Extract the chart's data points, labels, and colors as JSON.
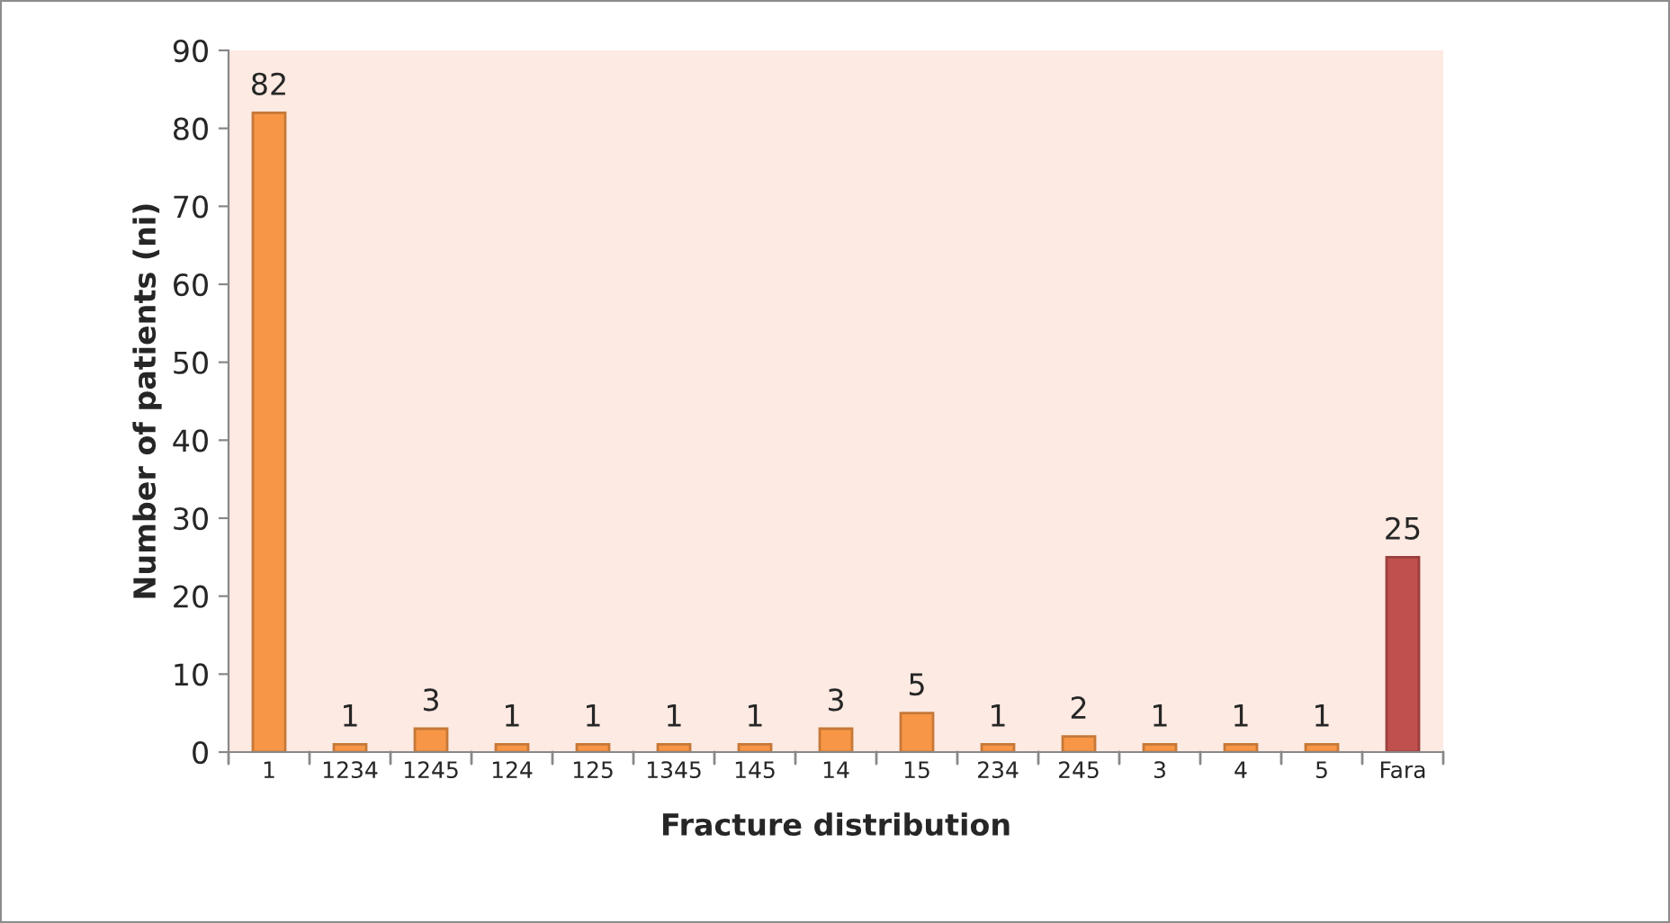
{
  "chart_data": {
    "type": "bar",
    "xlabel": "Fracture distribution",
    "ylabel": "Number of patients (ni)",
    "categories": [
      "1",
      "1234",
      "1245",
      "124",
      "125",
      "1345",
      "145",
      "14",
      "15",
      "234",
      "245",
      "3",
      "4",
      "5",
      "Fara"
    ],
    "values": [
      82,
      1,
      3,
      1,
      1,
      1,
      1,
      3,
      5,
      1,
      2,
      1,
      1,
      1,
      25
    ],
    "colors": [
      "#f79646",
      "#f79646",
      "#f79646",
      "#f79646",
      "#f79646",
      "#f79646",
      "#f79646",
      "#f79646",
      "#f79646",
      "#f79646",
      "#f79646",
      "#f79646",
      "#f79646",
      "#f79646",
      "#c0504d"
    ],
    "ylim": [
      0,
      90
    ],
    "yticks": [
      0,
      10,
      20,
      30,
      40,
      50,
      60,
      70,
      80,
      90
    ],
    "grid": false,
    "legend": false,
    "data_labels": true
  }
}
